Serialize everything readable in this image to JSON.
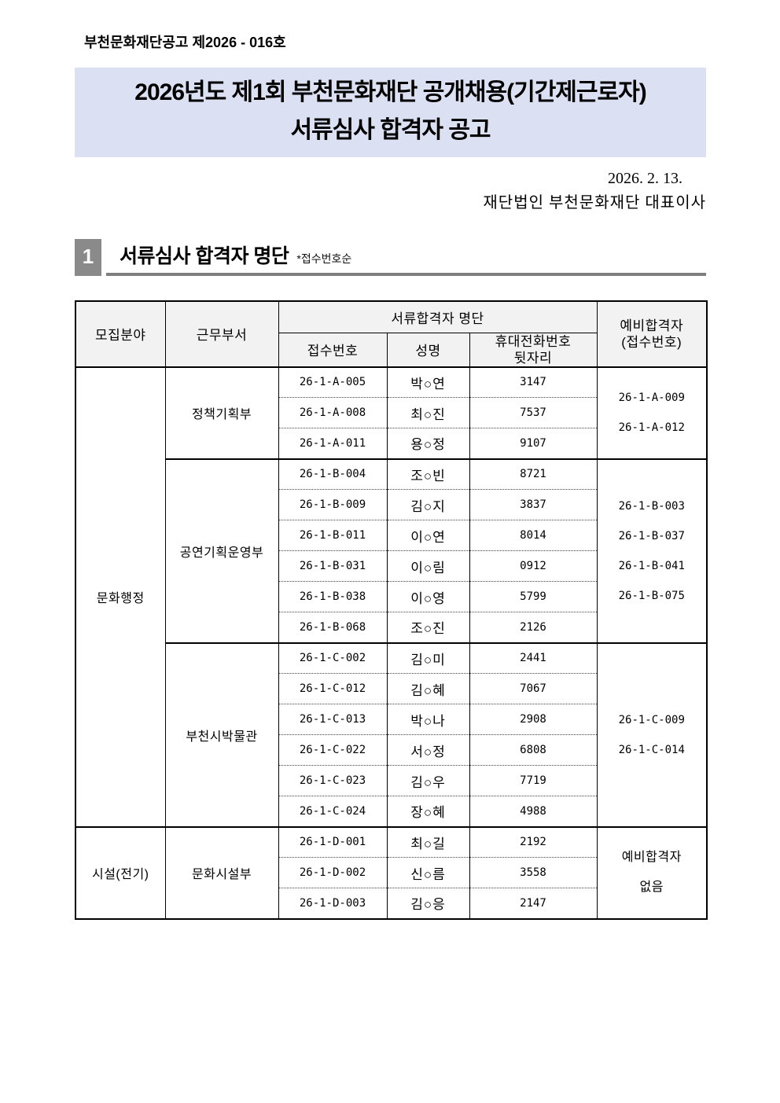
{
  "page": {
    "doc_number": "부천문화재단공고 제2026 - 016호",
    "banner": {
      "line1": "2026년도 제1회 부천문화재단 공개채용(기간제근로자)",
      "line2": "서류심사 합격자 공고",
      "bg_color": "#dbe1f2"
    },
    "date_line": "2026. 2. 13.",
    "issuer": "재단법인 부천문화재단 대표이사"
  },
  "section": {
    "number": "1",
    "title": "서류심사 합격자 명단",
    "note": "*접수번호순",
    "box_color": "#8a8a8a",
    "underline_color": "#7f7f7f"
  },
  "table": {
    "header": {
      "category": "모집분야",
      "dept": "근무부서",
      "pass_group": "서류합격자 명단",
      "receipt_no": "접수번호",
      "name": "성명",
      "phone_line1": "휴대전화번호",
      "phone_line2": "뒷자리",
      "reserve_line1": "예비합격자",
      "reserve_line2": "(접수번호)",
      "bg_color": "#f2f2f2"
    },
    "groups": [
      {
        "category": "문화행정",
        "category_rowspan": 15,
        "dept": "정책기획부",
        "rows": [
          {
            "receipt": "26-1-A-005",
            "name": "박○연",
            "phone": "3147"
          },
          {
            "receipt": "26-1-A-008",
            "name": "최○진",
            "phone": "7537"
          },
          {
            "receipt": "26-1-A-011",
            "name": "용○정",
            "phone": "9107"
          }
        ],
        "reserve": [
          "26-1-A-009",
          "26-1-A-012"
        ]
      },
      {
        "dept": "공연기획운영부",
        "rows": [
          {
            "receipt": "26-1-B-004",
            "name": "조○빈",
            "phone": "8721"
          },
          {
            "receipt": "26-1-B-009",
            "name": "김○지",
            "phone": "3837"
          },
          {
            "receipt": "26-1-B-011",
            "name": "이○연",
            "phone": "8014"
          },
          {
            "receipt": "26-1-B-031",
            "name": "이○림",
            "phone": "0912"
          },
          {
            "receipt": "26-1-B-038",
            "name": "이○영",
            "phone": "5799"
          },
          {
            "receipt": "26-1-B-068",
            "name": "조○진",
            "phone": "2126"
          }
        ],
        "reserve": [
          "26-1-B-003",
          "26-1-B-037",
          "26-1-B-041",
          "26-1-B-075"
        ]
      },
      {
        "dept": "부천시박물관",
        "rows": [
          {
            "receipt": "26-1-C-002",
            "name": "김○미",
            "phone": "2441"
          },
          {
            "receipt": "26-1-C-012",
            "name": "김○혜",
            "phone": "7067"
          },
          {
            "receipt": "26-1-C-013",
            "name": "박○나",
            "phone": "2908"
          },
          {
            "receipt": "26-1-C-022",
            "name": "서○정",
            "phone": "6808"
          },
          {
            "receipt": "26-1-C-023",
            "name": "김○우",
            "phone": "7719"
          },
          {
            "receipt": "26-1-C-024",
            "name": "장○혜",
            "phone": "4988"
          }
        ],
        "reserve": [
          "26-1-C-009",
          "26-1-C-014"
        ]
      },
      {
        "category": "시설(전기)",
        "category_rowspan": 3,
        "dept": "문화시설부",
        "rows": [
          {
            "receipt": "26-1-D-001",
            "name": "최○길",
            "phone": "2192"
          },
          {
            "receipt": "26-1-D-002",
            "name": "신○름",
            "phone": "3558"
          },
          {
            "receipt": "26-1-D-003",
            "name": "김○응",
            "phone": "2147"
          }
        ],
        "reserve": [
          "예비합격자",
          "없음"
        ]
      }
    ]
  }
}
